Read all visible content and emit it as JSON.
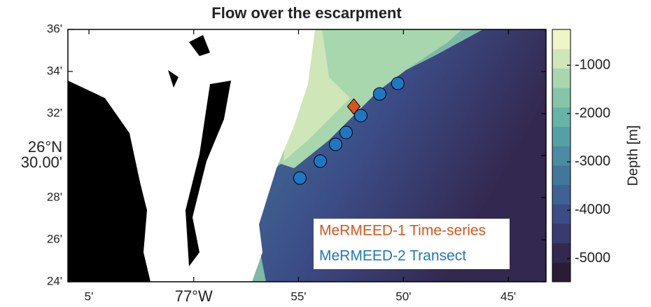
{
  "chart_data": {
    "type": "map",
    "title": "Flow over the escarpment",
    "xlim": [
      -77.1,
      -76.72
    ],
    "ylim": [
      26.4,
      26.6
    ],
    "xticks": [
      {
        "value": -77.0833,
        "label": "5'"
      },
      {
        "value": -77,
        "label": "77°W"
      },
      {
        "value": -76.9167,
        "label": "55'"
      },
      {
        "value": -76.8333,
        "label": "50'"
      },
      {
        "value": -76.75,
        "label": "45'"
      }
    ],
    "yticks": [
      {
        "value": 26.4,
        "label": "24'"
      },
      {
        "value": 26.4333,
        "label": "26'"
      },
      {
        "value": 26.4667,
        "label": "28'"
      },
      {
        "value": 26.5,
        "label": "26°N 30.00'"
      },
      {
        "value": 26.5333,
        "label": "32'"
      },
      {
        "value": 26.5667,
        "label": "34'"
      },
      {
        "value": 26.6,
        "label": "36'"
      }
    ],
    "series": [
      {
        "name": "MeRMEED-1 Time-series",
        "color": "#d9541a",
        "marker": "diamond",
        "x": [
          -76.8728
        ],
        "y": [
          26.5389
        ]
      },
      {
        "name": "MeRMEED-2 Transect",
        "color": "#1f77c4",
        "marker": "circle",
        "x": [
          -76.9156,
          -76.8994,
          -76.8872,
          -76.8789,
          -76.8672,
          -76.8522,
          -76.8378
        ],
        "y": [
          26.4822,
          26.4956,
          26.5089,
          26.5183,
          26.5317,
          26.5489,
          26.5572
        ]
      }
    ],
    "legend": "lower right",
    "colorbar": {
      "label": "Depth [m]",
      "clim": [
        -5480,
        -260
      ],
      "ticks": [
        -5000,
        -4000,
        -3000,
        -2000,
        -1000
      ],
      "colors": [
        "#2b1c35",
        "#33284f",
        "#393a6d",
        "#3c4c86",
        "#3e6293",
        "#42779b",
        "#4a8ca1",
        "#55a0a6",
        "#68b3a8",
        "#85c5a9",
        "#a8d6ad",
        "#cfe6b8",
        "#eef5c6"
      ]
    }
  }
}
